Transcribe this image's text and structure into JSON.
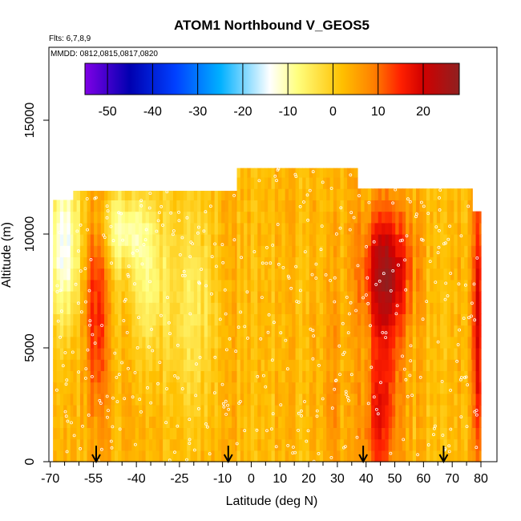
{
  "chart_data": {
    "type": "heatmap",
    "title": "ATOM1 Northbound V_GEOS5",
    "annotations": {
      "flights": "Flts: 6,7,8,9",
      "dates": "MMDD: 0812,0815,0817,0820"
    },
    "xlabel": "Latitude (deg N)",
    "ylabel": "Altitude (m)",
    "xlim": [
      -70,
      82
    ],
    "ylim": [
      0,
      17500
    ],
    "x_ticks": [
      -70,
      -55,
      -40,
      -25,
      -10,
      0,
      10,
      20,
      30,
      40,
      50,
      60,
      70,
      80
    ],
    "x_tick_labels": [
      "-70",
      "-55",
      "-40",
      "-25",
      "-10",
      "0",
      "10",
      "20",
      "30",
      "40",
      "50",
      "60",
      "70",
      "80"
    ],
    "y_ticks": [
      0,
      5000,
      10000,
      15000
    ],
    "y_tick_labels": [
      "0",
      "5000",
      "10000",
      "15000"
    ],
    "colorbar": {
      "range": [
        -55,
        28
      ],
      "ticks": [
        -50,
        -40,
        -30,
        -20,
        -10,
        0,
        10,
        20
      ],
      "tick_labels": [
        "-50",
        "-40",
        "-30",
        "-20",
        "-10",
        "0",
        "10",
        "20"
      ],
      "colors": [
        "#8000e6",
        "#0000b0",
        "#0040ff",
        "#00b0ff",
        "#ffffff",
        "#ffff80",
        "#ffc000",
        "#ff8000",
        "#ff2000",
        "#d00000",
        "#902020"
      ]
    },
    "coverage": [
      {
        "lat_min": -67,
        "lat_max": -69,
        "alt_min": 0,
        "alt_max": 11000
      },
      {
        "lat_min": -69,
        "lat_max": -62,
        "alt_min": 0,
        "alt_max": 11500
      },
      {
        "lat_min": -62,
        "lat_max": -5,
        "alt_min": 0,
        "alt_max": 11900
      },
      {
        "lat_min": -5,
        "lat_max": 37,
        "alt_min": 0,
        "alt_max": 12900
      },
      {
        "lat_min": 37,
        "lat_max": 77,
        "alt_min": 0,
        "alt_max": 12000
      },
      {
        "lat_min": 77,
        "lat_max": 80,
        "alt_min": 0,
        "alt_max": 11000
      }
    ],
    "value_features": [
      {
        "lat": -54,
        "alt": 7500,
        "sigma_lat": 3,
        "sigma_alt": 3000,
        "value": 15
      },
      {
        "lat": -52,
        "alt": 2500,
        "sigma_lat": 3,
        "sigma_alt": 3000,
        "value": 6
      },
      {
        "lat": -65,
        "alt": 9500,
        "sigma_lat": 4,
        "sigma_alt": 2500,
        "value": -14
      },
      {
        "lat": -45,
        "alt": 10200,
        "sigma_lat": 6,
        "sigma_alt": 1200,
        "value": -9
      },
      {
        "lat": -36,
        "alt": 8000,
        "sigma_lat": 5,
        "sigma_alt": 2500,
        "value": -7
      },
      {
        "lat": -20,
        "alt": 7000,
        "sigma_lat": 6,
        "sigma_alt": 3500,
        "value": -5
      },
      {
        "lat": 28,
        "alt": 3000,
        "sigma_lat": 3,
        "sigma_alt": 3500,
        "value": 6
      },
      {
        "lat": 47,
        "alt": 8500,
        "sigma_lat": 6,
        "sigma_alt": 1800,
        "value": 20
      },
      {
        "lat": 47,
        "alt": 5500,
        "sigma_lat": 4,
        "sigma_alt": 3000,
        "value": 12
      },
      {
        "lat": 44,
        "alt": 1500,
        "sigma_lat": 4,
        "sigma_alt": 2000,
        "value": 12
      },
      {
        "lat": 79,
        "alt": 6000,
        "sigma_lat": 1.5,
        "sigma_alt": 5000,
        "value": 20
      }
    ],
    "background_value": 3,
    "flight_marker_latitudes": [
      -54,
      -8,
      39,
      67
    ]
  }
}
